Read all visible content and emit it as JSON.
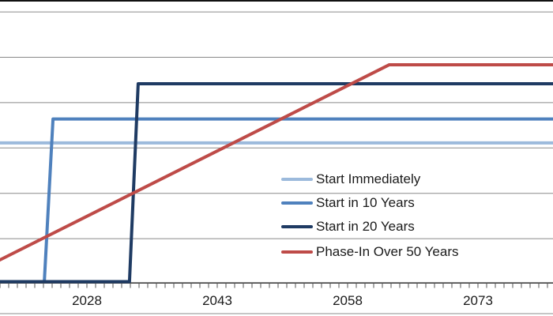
{
  "colors": {
    "background": "#FFFFFF",
    "gridline": "#8A8A8A",
    "axis_line": "#3F3F3F",
    "tick": "#565656",
    "text": "#1A1A1A",
    "top_border": "#111111",
    "bottom_border": "#C6C6C6"
  },
  "chart_data": {
    "type": "line",
    "title": "",
    "xlabel": "",
    "ylabel": "",
    "x_axis": {
      "tick_labels": [
        "2028",
        "2043",
        "2058",
        "2073"
      ],
      "tick_years": [
        2028,
        2043,
        2058,
        2073
      ],
      "minor_tick_interval_years": 1,
      "visible_year_range": [
        2018,
        2082
      ],
      "note": "chart is cropped: y-axis labels, chart title and years left of ~2018 are not visible"
    },
    "y_axis": {
      "labels_visible": false,
      "visible_gridlines": 6,
      "units": "relative units; 1 unit = one horizontal gridline spacing above the x-axis baseline"
    },
    "series": [
      {
        "name": "Start Immediately",
        "color": "#9CBADC",
        "points": [
          [
            2013,
            3.07
          ],
          [
            2082,
            3.07
          ]
        ]
      },
      {
        "name": "Start in 10 Years",
        "color": "#4F81BD",
        "points": [
          [
            2013,
            0
          ],
          [
            2023.1,
            0
          ],
          [
            2024.1,
            3.6
          ],
          [
            2082,
            3.6
          ]
        ]
      },
      {
        "name": "Start in 20 Years",
        "color": "#1F3B63",
        "points": [
          [
            2013,
            0
          ],
          [
            2032.9,
            0
          ],
          [
            2033.9,
            4.38
          ],
          [
            2082,
            4.38
          ]
        ]
      },
      {
        "name": "Phase-In Over 50 Years",
        "color": "#BE4B48",
        "points": [
          [
            2013,
            0
          ],
          [
            2062.8,
            4.8
          ],
          [
            2082,
            4.8
          ]
        ]
      }
    ],
    "legend": {
      "position": "overlaid on plot, center-right",
      "entries": [
        "Start Immediately",
        "Start in 10 Years",
        "Start in 20 Years",
        "Phase-In Over 50 Years"
      ]
    }
  }
}
